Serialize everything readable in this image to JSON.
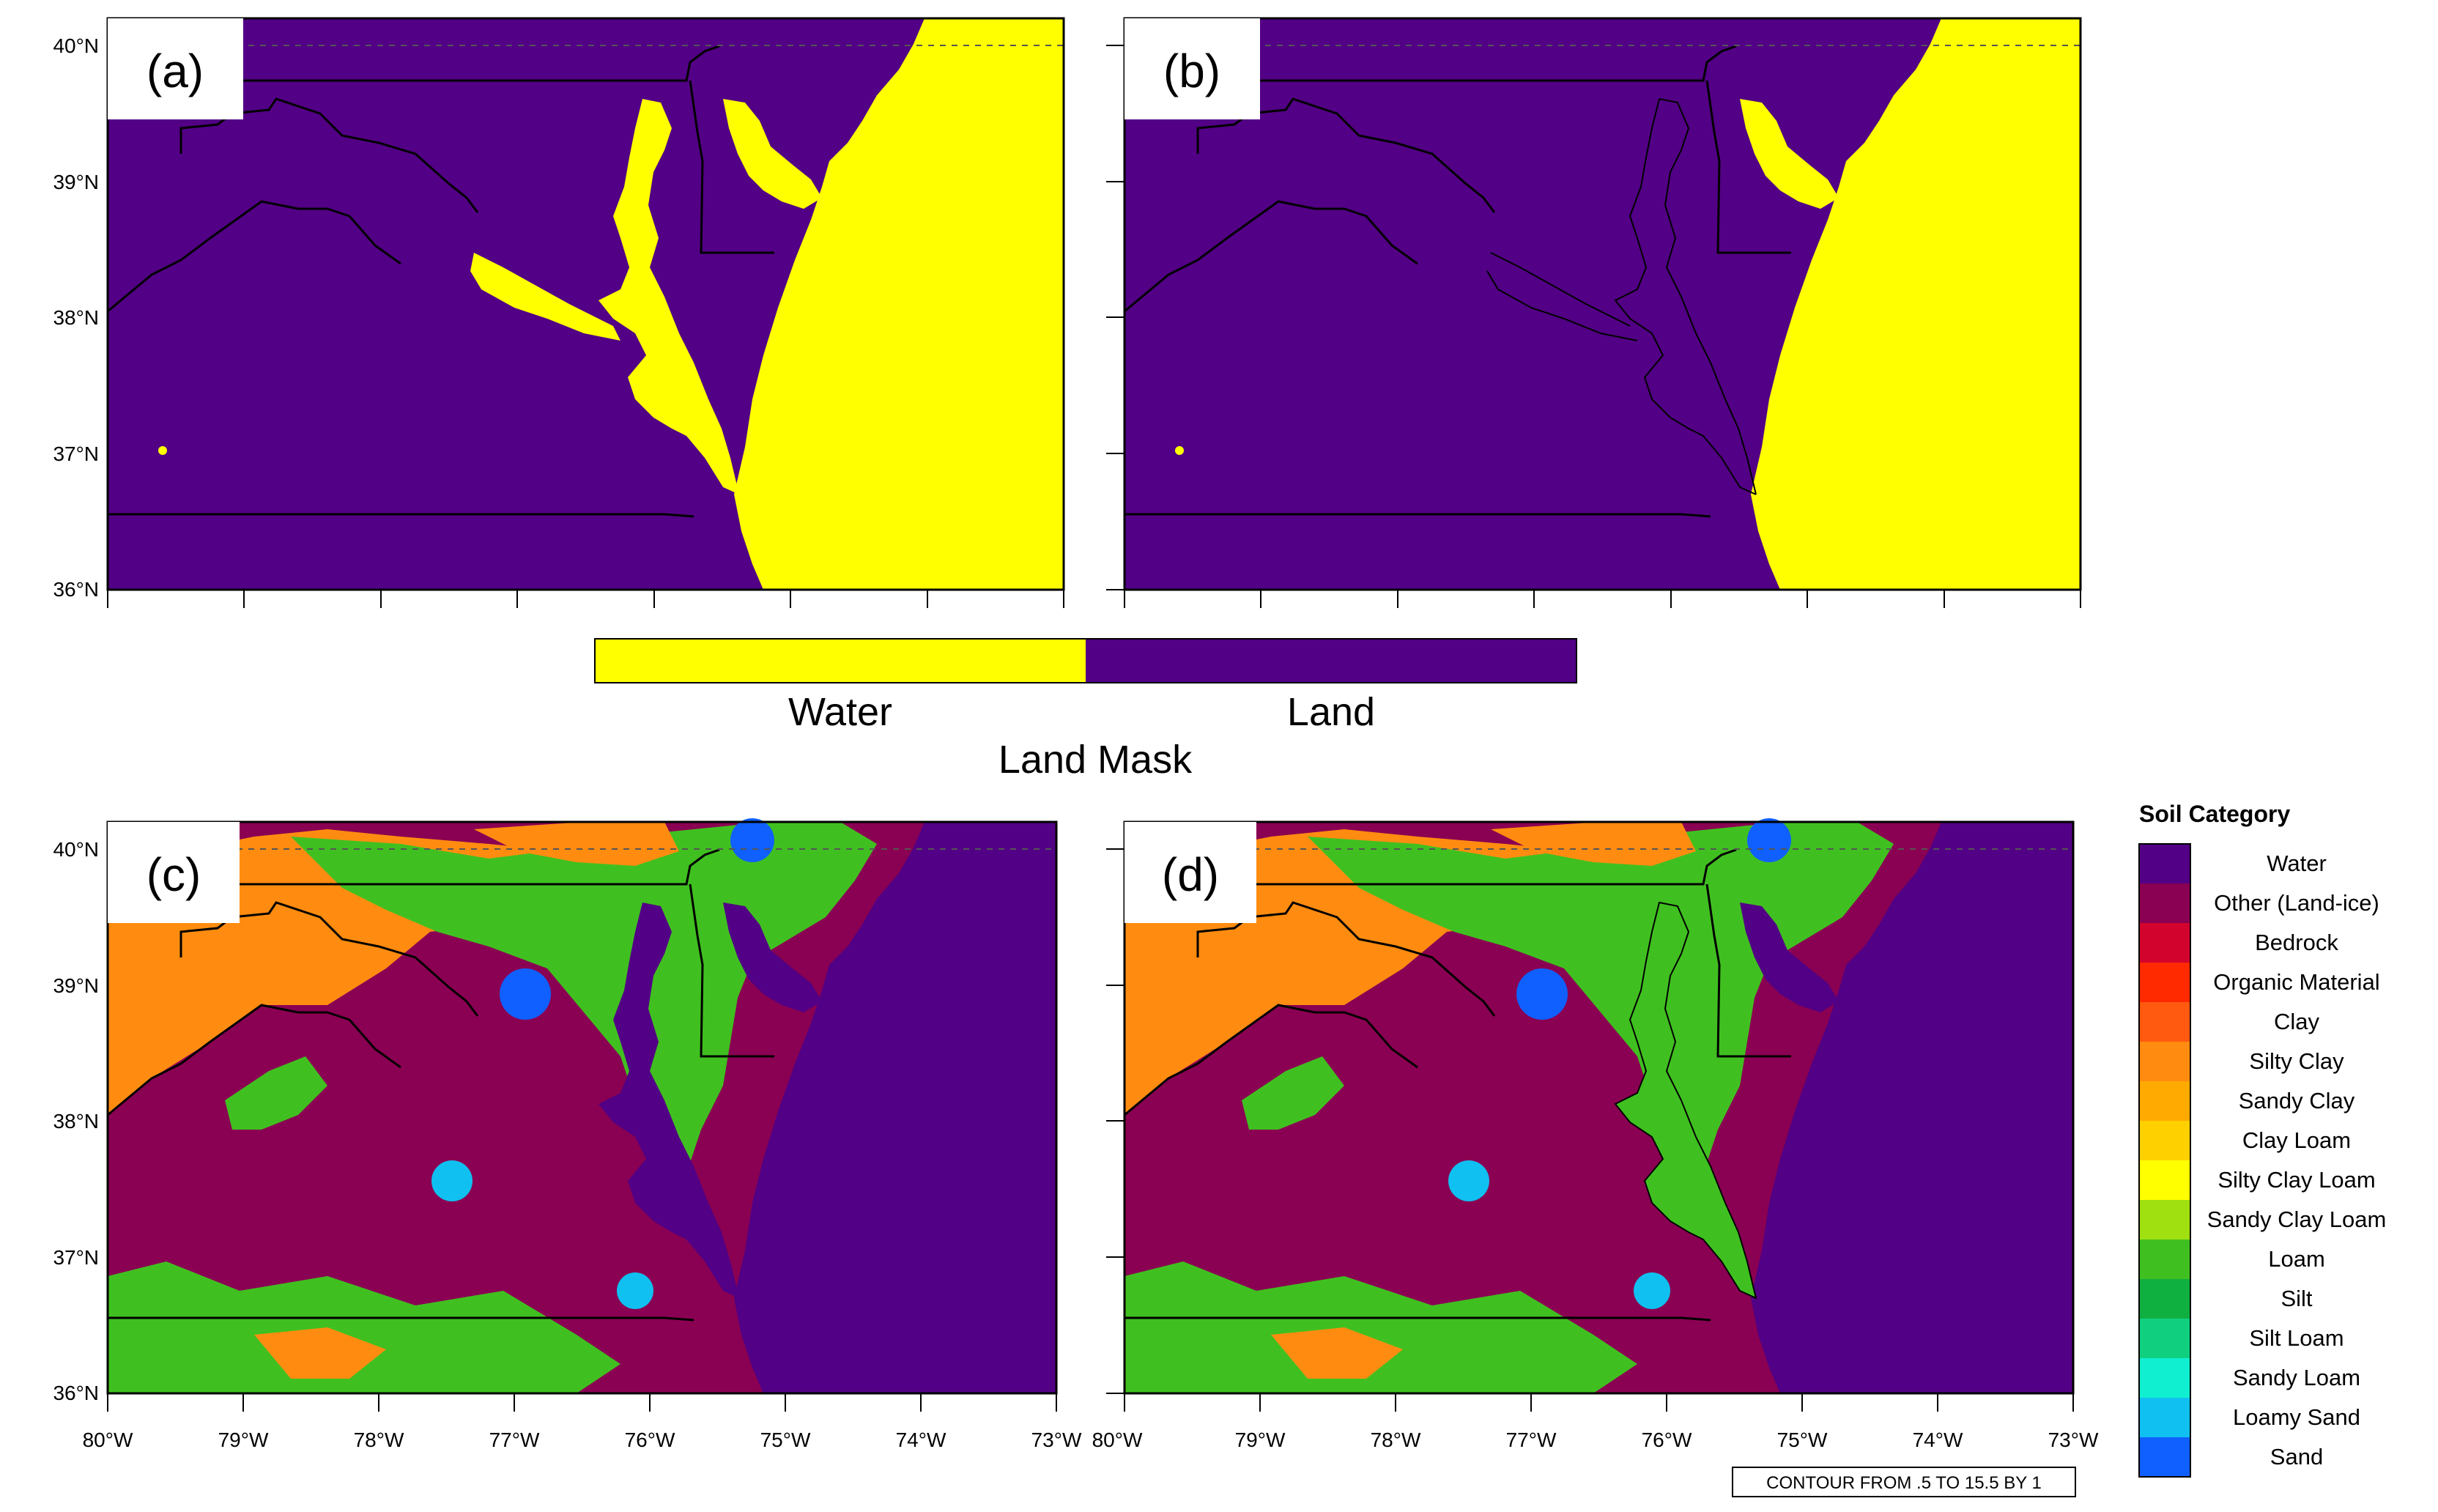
{
  "panels": [
    {
      "label": "(a)",
      "type": "land-mask"
    },
    {
      "label": "(b)",
      "type": "land-mask"
    },
    {
      "label": "(c)",
      "type": "soil-category"
    },
    {
      "label": "(d)",
      "type": "soil-category"
    }
  ],
  "lat_ticks": [
    "40°N",
    "39°N",
    "38°N",
    "37°N",
    "36°N"
  ],
  "lon_ticks": [
    "80°W",
    "79°W",
    "78°W",
    "77°W",
    "76°W",
    "75°W",
    "74°W",
    "73°W"
  ],
  "land_mask_colorbar": {
    "title": "Land Mask",
    "labels": [
      "Water",
      "Land"
    ],
    "colors": [
      "#ffff00",
      "#520085"
    ]
  },
  "soil_legend": {
    "title": "Soil Category",
    "categories": [
      {
        "name": "Water",
        "color": "#520085"
      },
      {
        "name": "Other (Land-ice)",
        "color": "#8a0052"
      },
      {
        "name": "Bedrock",
        "color": "#d2042d"
      },
      {
        "name": "Organic Material",
        "color": "#ff2a00"
      },
      {
        "name": "Clay",
        "color": "#ff5a10"
      },
      {
        "name": "Silty Clay",
        "color": "#ff8c10"
      },
      {
        "name": "Sandy Clay",
        "color": "#ffaa00"
      },
      {
        "name": "Clay Loam",
        "color": "#ffd000"
      },
      {
        "name": "Silty Clay Loam",
        "color": "#ffff00"
      },
      {
        "name": "Sandy Clay Loam",
        "color": "#a0e010"
      },
      {
        "name": "Loam",
        "color": "#40c020"
      },
      {
        "name": "Silt",
        "color": "#10b040"
      },
      {
        "name": "Silt Loam",
        "color": "#10d080"
      },
      {
        "name": "Sandy Loam",
        "color": "#10f0d0"
      },
      {
        "name": "Loamy Sand",
        "color": "#10c0f0"
      },
      {
        "name": "Sand",
        "color": "#1060ff"
      }
    ]
  },
  "contour_note": "CONTOUR FROM .5 TO 15.5 BY 1",
  "colors": {
    "land_purple": "#520085",
    "water_yellow": "#ffff00",
    "soil_maroon": "#8a0052",
    "soil_orange": "#ff8c10",
    "soil_green": "#40c020",
    "soil_blue": "#10c0f0"
  }
}
